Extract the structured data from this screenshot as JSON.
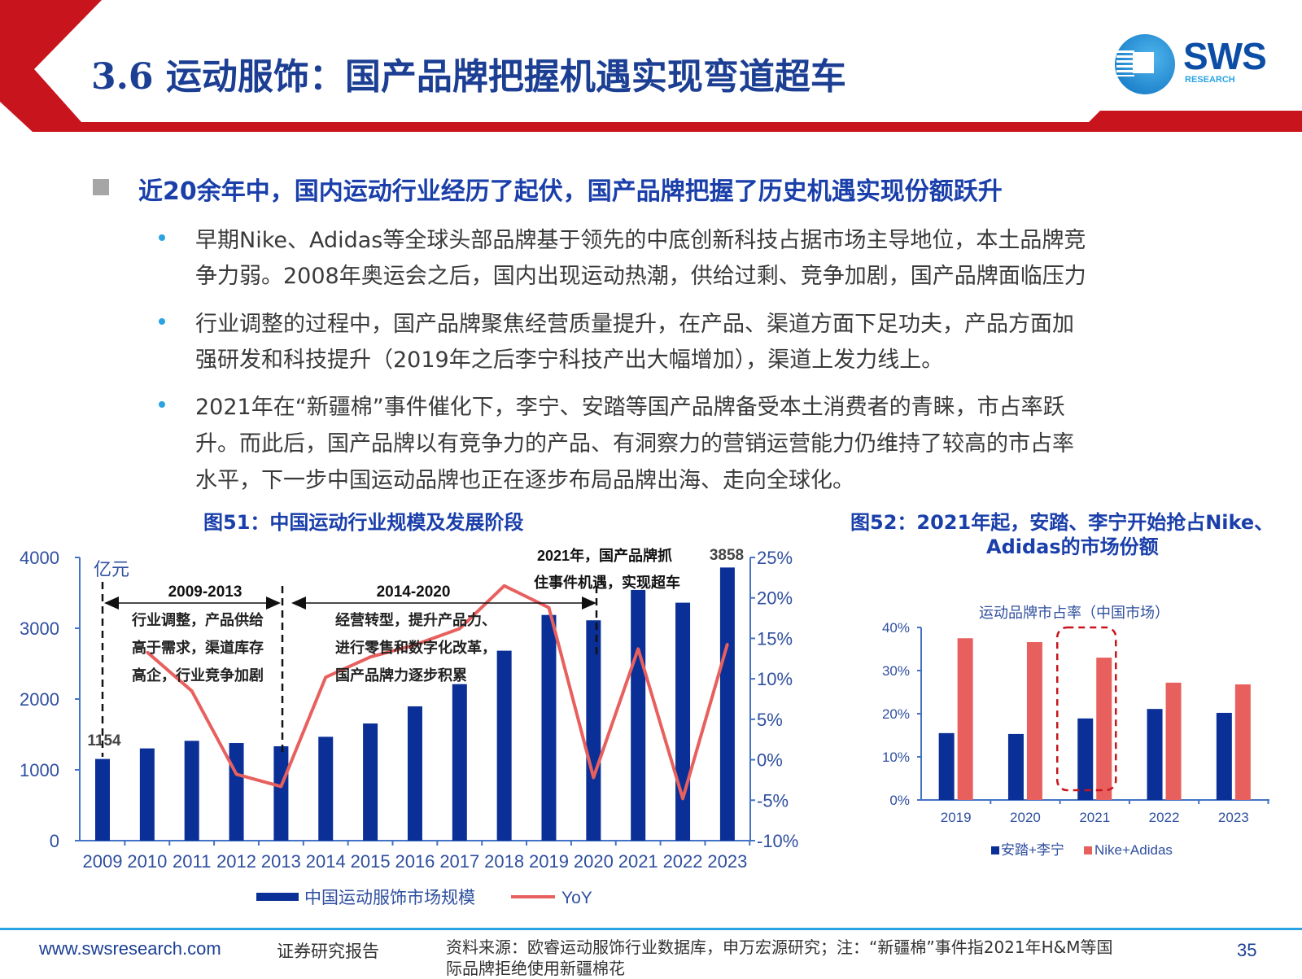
{
  "header": {
    "title": "3.6 运动服饰：国产品牌把握机遇实现弯道超车",
    "logo_text": "SWS",
    "logo_subtext": "RESEARCH"
  },
  "heading": "近20余年中，国内运动行业经历了起伏，国产品牌把握了历史机遇实现份额跃升",
  "bullets": [
    {
      "lines": [
        "早期Nike、Adidas等全球头部品牌基于领先的中底创新科技占据市场主导地位，本土品牌竞",
        "争力弱。2008年奥运会之后，国内出现运动热潮，供给过剩、竞争加剧，国产品牌面临压力"
      ]
    },
    {
      "lines": [
        "行业调整的过程中，国产品牌聚焦经营质量提升，在产品、渠道方面下足功夫，产品方面加",
        "强研发和科技提升（2019年之后李宁科技产出大幅增加），渠道上发力线上。"
      ]
    },
    {
      "lines": [
        "2021年在“新疆棉”事件催化下，李宁、安踏等国产品牌备受本土消费者的青睐，市占率跃",
        "升。而此后，国产品牌以有竞争力的产品、有洞察力的营销运营能力仍维持了较高的市占率",
        "水平，下一步中国运动品牌也正在逐步布局品牌出海、走向全球化。"
      ]
    }
  ],
  "chart_data": [
    {
      "type": "bar",
      "title": "图51：中国运动行业规模及发展阶段",
      "unit_label": "亿元",
      "categories": [
        "2009",
        "2010",
        "2011",
        "2012",
        "2013",
        "2014",
        "2015",
        "2016",
        "2017",
        "2018",
        "2019",
        "2020",
        "2021",
        "2022",
        "2023"
      ],
      "series": [
        {
          "name": "中国运动服饰市场规模",
          "type": "bar",
          "axis": "left",
          "color": "#0a2f96",
          "values": [
            1154,
            1303,
            1410,
            1379,
            1333,
            1467,
            1655,
            1897,
            2211,
            2683,
            3188,
            3112,
            3541,
            3361,
            3858
          ]
        },
        {
          "name": "YoY",
          "type": "line",
          "axis": "right",
          "color": "#e8605e",
          "values": [
            null,
            13.3,
            8.5,
            -1.8,
            -3.3,
            10.2,
            12.7,
            14.2,
            16.2,
            21.5,
            18.8,
            -2.2,
            13.7,
            -4.8,
            14.3
          ]
        }
      ],
      "y_left": {
        "ticks": [
          "0",
          "1000",
          "2000",
          "3000",
          "4000"
        ],
        "lim": [
          0,
          4000
        ]
      },
      "y_right": {
        "ticks": [
          "-10%",
          "-5%",
          "0%",
          "5%",
          "10%",
          "15%",
          "20%",
          "25%"
        ],
        "lim": [
          -10,
          25
        ]
      },
      "data_labels": {
        "first": "1154",
        "last": "3858"
      },
      "annotations": {
        "phase1_label": "2009-2013",
        "phase1_text": [
          "行业调整，产品供给",
          "高于需求，渠道库存",
          "高企，行业竞争加剧"
        ],
        "phase2_label": "2014-2020",
        "phase2_text": [
          "经营转型，提升产品力、",
          "进行零售和数字化改革，",
          "国产品牌力逐步积累"
        ],
        "phase3_text": [
          "2021年，国产品牌抓",
          "住事件机遇，实现超车"
        ]
      },
      "legend": "bottom"
    },
    {
      "type": "bar",
      "title": [
        "图52：2021年起，安踏、李宁开始抢占Nike、",
        "Adidas的市场份额"
      ],
      "subtitle": "运动品牌市占率（中国市场）",
      "categories": [
        "2019",
        "2020",
        "2021",
        "2022",
        "2023"
      ],
      "series": [
        {
          "name": "安踏+李宁",
          "color": "#0a2f96",
          "values": [
            15.5,
            15.3,
            18.9,
            21.1,
            20.2
          ]
        },
        {
          "name": "Nike+Adidas",
          "color": "#e8605e",
          "values": [
            37.5,
            36.6,
            33.0,
            27.2,
            26.8
          ]
        }
      ],
      "y": {
        "ticks": [
          "0%",
          "10%",
          "20%",
          "30%",
          "40%"
        ],
        "lim": [
          0,
          40
        ]
      },
      "highlight": "2021",
      "legend": "bottom"
    }
  ],
  "footer": {
    "url": "www.swsresearch.com",
    "report_type": "证券研究报告",
    "source": [
      "资料来源：欧睿运动服饰行业数据库，申万宏源研究；注：“新疆棉”事件指2021年H&M等国",
      "际品牌拒绝使用新疆棉花"
    ],
    "page": "35"
  }
}
